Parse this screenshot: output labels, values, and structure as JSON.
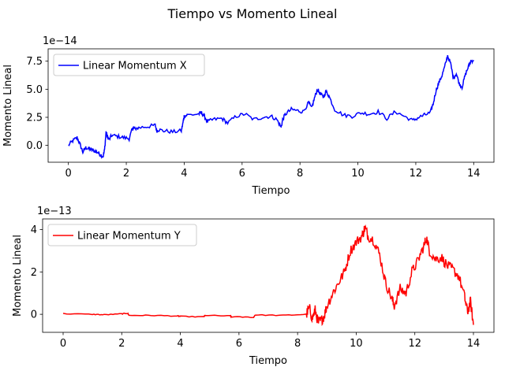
{
  "figure": {
    "suptitle": "Tiempo vs Momento Lineal"
  },
  "chart_data": [
    {
      "type": "line",
      "xlabel": "Tiempo",
      "ylabel": "Momento Lineal",
      "offset_text": "1e−14",
      "xlim": [
        -0.7,
        14.7
      ],
      "ylim": [
        -1.5,
        8.6
      ],
      "xticks": [
        0,
        2,
        4,
        6,
        8,
        10,
        12,
        14
      ],
      "xtick_labels": [
        "0",
        "2",
        "4",
        "6",
        "8",
        "10",
        "12",
        "14"
      ],
      "yticks": [
        0.0,
        2.5,
        5.0,
        7.5
      ],
      "ytick_labels": [
        "0.0",
        "2.5",
        "5.0",
        "7.5"
      ],
      "legend_position": "upper-left",
      "grid": false,
      "series": [
        {
          "name": "Linear Momentum X",
          "color": "#0000ff",
          "x": [
            0,
            0.15,
            0.3,
            0.4,
            0.5,
            0.6,
            0.7,
            0.8,
            0.9,
            1.0,
            1.1,
            1.2,
            1.25,
            1.3,
            1.35,
            1.4,
            1.5,
            1.7,
            1.9,
            2.1,
            2.2,
            2.25,
            2.3,
            2.5,
            2.8,
            3.0,
            3.05,
            3.1,
            3.3,
            3.6,
            3.9,
            3.95,
            4.0,
            4.1,
            4.5,
            4.6,
            4.7,
            4.8,
            5.0,
            5.3,
            5.5,
            5.8,
            6.1,
            6.4,
            6.7,
            7.0,
            7.2,
            7.35,
            7.4,
            7.5,
            7.7,
            7.9,
            8.1,
            8.3,
            8.4,
            8.5,
            8.6,
            8.7,
            8.8,
            8.9,
            9.0,
            9.2,
            9.5,
            9.8,
            10.1,
            10.4,
            10.7,
            11.0,
            11.3,
            11.6,
            11.9,
            12.1,
            12.3,
            12.5,
            12.6,
            12.7,
            12.8,
            12.9,
            13.0,
            13.1,
            13.2,
            13.3,
            13.4,
            13.5,
            13.6,
            13.7,
            13.8,
            13.9,
            14.0
          ],
          "values": [
            0.0,
            0.4,
            0.7,
            0.1,
            -0.6,
            -0.2,
            -0.3,
            -0.4,
            -0.5,
            -0.6,
            -0.8,
            -1.0,
            -0.4,
            1.2,
            0.8,
            0.5,
            0.9,
            0.8,
            0.7,
            0.6,
            1.4,
            1.6,
            1.5,
            1.6,
            1.7,
            1.8,
            1.3,
            1.4,
            1.3,
            1.2,
            1.3,
            1.9,
            2.6,
            2.7,
            2.8,
            2.9,
            2.6,
            2.1,
            2.3,
            2.4,
            2.0,
            2.6,
            2.8,
            2.3,
            2.5,
            2.6,
            2.3,
            1.6,
            2.3,
            2.8,
            3.2,
            3.1,
            3.0,
            3.8,
            3.3,
            4.2,
            5.0,
            4.6,
            4.3,
            4.8,
            4.4,
            3.2,
            2.7,
            2.6,
            2.9,
            2.8,
            3.0,
            2.4,
            3.0,
            2.6,
            2.2,
            2.5,
            2.7,
            2.9,
            3.7,
            4.9,
            5.6,
            6.2,
            7.0,
            8.0,
            7.3,
            6.0,
            6.4,
            5.5,
            5.2,
            6.2,
            6.9,
            7.5,
            7.6
          ]
        }
      ]
    },
    {
      "type": "line",
      "xlabel": "Tiempo",
      "ylabel": "Momento Lineal",
      "offset_text": "1e−13",
      "xlim": [
        -0.7,
        14.7
      ],
      "ylim": [
        -0.85,
        4.5
      ],
      "xticks": [
        0,
        2,
        4,
        6,
        8,
        10,
        12,
        14
      ],
      "xtick_labels": [
        "0",
        "2",
        "4",
        "6",
        "8",
        "10",
        "12",
        "14"
      ],
      "yticks": [
        0,
        2,
        4
      ],
      "ytick_labels": [
        "0",
        "2",
        "4"
      ],
      "legend_position": "upper-left",
      "grid": false,
      "series": [
        {
          "name": "Linear Momentum Y",
          "color": "#ff0000",
          "x": [
            0,
            1.0,
            1.4,
            2.0,
            2.2,
            2.25,
            3.0,
            3.9,
            4.0,
            4.8,
            4.85,
            5.7,
            5.75,
            6.5,
            6.55,
            7.5,
            8.3,
            8.4,
            8.5,
            8.6,
            8.7,
            8.8,
            8.9,
            9.0,
            9.2,
            9.4,
            9.6,
            9.8,
            10.0,
            10.2,
            10.3,
            10.4,
            10.6,
            10.8,
            11.0,
            11.2,
            11.3,
            11.5,
            11.7,
            11.9,
            12.1,
            12.3,
            12.4,
            12.5,
            12.7,
            12.9,
            13.1,
            13.3,
            13.5,
            13.7,
            13.8,
            13.9,
            14.0
          ],
          "values": [
            0.03,
            0.0,
            -0.02,
            0.02,
            0.05,
            -0.05,
            -0.05,
            -0.08,
            -0.1,
            -0.12,
            -0.05,
            -0.08,
            -0.12,
            -0.14,
            -0.03,
            -0.05,
            0.0,
            0.3,
            -0.2,
            0.2,
            -0.4,
            -0.3,
            -0.1,
            0.4,
            1.0,
            1.5,
            2.0,
            3.0,
            3.4,
            3.7,
            4.1,
            3.7,
            3.5,
            2.8,
            1.5,
            0.8,
            0.4,
            1.2,
            1.0,
            2.0,
            2.5,
            3.2,
            3.6,
            3.0,
            2.6,
            2.7,
            2.3,
            2.1,
            1.8,
            0.8,
            0.1,
            0.6,
            -0.5
          ]
        }
      ]
    }
  ]
}
